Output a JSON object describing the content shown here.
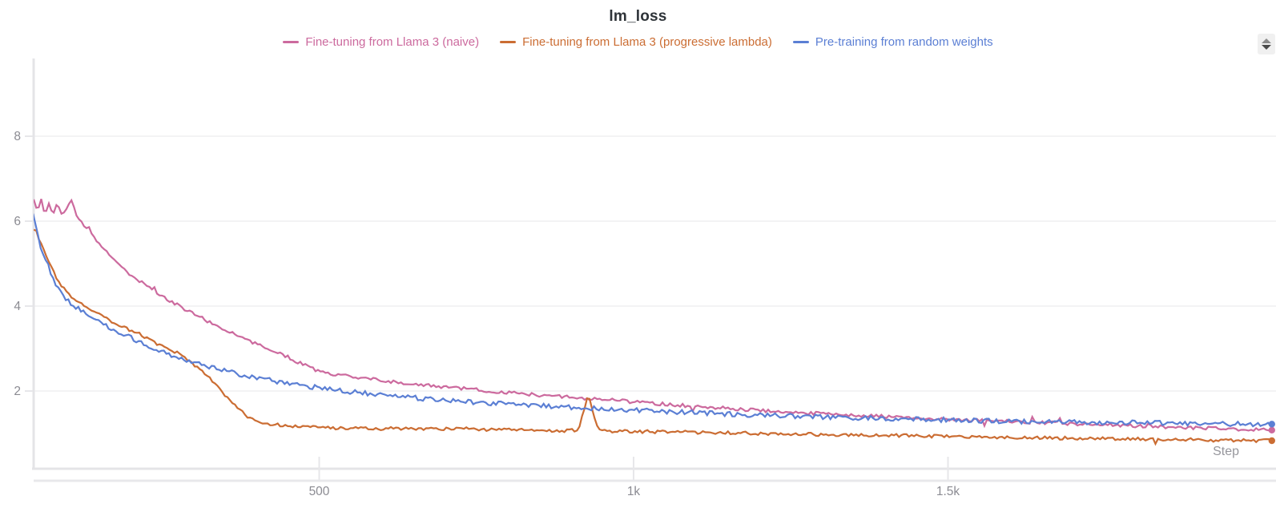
{
  "header": {
    "title": "lm_loss"
  },
  "colors": {
    "axis_line": "#e4e4e7",
    "axis_line_2": "#e8e8eb",
    "grid_line": "#f3f3f4",
    "tick_mark": "#e7e7ea",
    "tick_label": "#8b8b92",
    "title_text": "#2e3338",
    "step_label": "#96969c",
    "background": "#ffffff"
  },
  "chart_data": {
    "type": "line",
    "title": "lm_loss",
    "xlabel": "Step",
    "ylabel": "",
    "grid": true,
    "legend_position": "top",
    "x_axis": {
      "range": [
        45,
        2015
      ],
      "ticks": [
        {
          "label": "500",
          "value": 500
        },
        {
          "label": "1k",
          "value": 1000
        },
        {
          "label": "1.5k",
          "value": 1500
        }
      ]
    },
    "y_axis": {
      "range": [
        0.2,
        9.8
      ],
      "ticks": [
        {
          "label": "8",
          "value": 8
        },
        {
          "label": "6",
          "value": 6
        },
        {
          "label": "4",
          "value": 4
        },
        {
          "label": "2",
          "value": 2
        }
      ]
    },
    "series": [
      {
        "name": "Fine-tuning from Llama 3 (naive)",
        "color": "#cc6a9e",
        "noise": 0.04,
        "end_dot": true,
        "points": [
          [
            46,
            6.55
          ],
          [
            52,
            6.2
          ],
          [
            58,
            6.5
          ],
          [
            64,
            6.15
          ],
          [
            70,
            6.4
          ],
          [
            77,
            6.2
          ],
          [
            84,
            6.45
          ],
          [
            91,
            6.15
          ],
          [
            99,
            6.35
          ],
          [
            107,
            6.5
          ],
          [
            115,
            6.1
          ],
          [
            124,
            5.95
          ],
          [
            134,
            5.75
          ],
          [
            145,
            5.55
          ],
          [
            157,
            5.35
          ],
          [
            170,
            5.15
          ],
          [
            184,
            4.95
          ],
          [
            199,
            4.75
          ],
          [
            214,
            4.6
          ],
          [
            230,
            4.45
          ],
          [
            247,
            4.28
          ],
          [
            265,
            4.1
          ],
          [
            284,
            3.95
          ],
          [
            304,
            3.8
          ],
          [
            325,
            3.62
          ],
          [
            347,
            3.45
          ],
          [
            370,
            3.3
          ],
          [
            394,
            3.15
          ],
          [
            419,
            3.0
          ],
          [
            445,
            2.84
          ],
          [
            472,
            2.64
          ],
          [
            500,
            2.45
          ],
          [
            560,
            2.32
          ],
          [
            620,
            2.21
          ],
          [
            680,
            2.12
          ],
          [
            740,
            2.04
          ],
          [
            800,
            1.96
          ],
          [
            860,
            1.89
          ],
          [
            920,
            1.83
          ],
          [
            980,
            1.77
          ],
          [
            1040,
            1.7
          ],
          [
            1100,
            1.64
          ],
          [
            1160,
            1.58
          ],
          [
            1220,
            1.53
          ],
          [
            1280,
            1.48
          ],
          [
            1340,
            1.44
          ],
          [
            1400,
            1.4
          ],
          [
            1460,
            1.36
          ],
          [
            1520,
            1.32
          ],
          [
            1580,
            1.29
          ],
          [
            1640,
            1.26
          ],
          [
            1700,
            1.23
          ],
          [
            1760,
            1.2
          ],
          [
            1820,
            1.17
          ],
          [
            1880,
            1.14
          ],
          [
            1940,
            1.11
          ],
          [
            2015,
            1.08
          ]
        ]
      },
      {
        "name": "Fine-tuning from Llama 3 (progressive lambda)",
        "color": "#cb6d33",
        "noise": 0.038,
        "end_dot": true,
        "points": [
          [
            46,
            5.9
          ],
          [
            53,
            5.62
          ],
          [
            60,
            5.38
          ],
          [
            68,
            5.12
          ],
          [
            76,
            4.85
          ],
          [
            85,
            4.6
          ],
          [
            95,
            4.4
          ],
          [
            106,
            4.22
          ],
          [
            118,
            4.08
          ],
          [
            131,
            3.95
          ],
          [
            145,
            3.83
          ],
          [
            160,
            3.72
          ],
          [
            176,
            3.6
          ],
          [
            193,
            3.48
          ],
          [
            211,
            3.36
          ],
          [
            230,
            3.22
          ],
          [
            250,
            3.08
          ],
          [
            270,
            2.93
          ],
          [
            290,
            2.75
          ],
          [
            310,
            2.52
          ],
          [
            328,
            2.28
          ],
          [
            344,
            2.02
          ],
          [
            358,
            1.78
          ],
          [
            372,
            1.56
          ],
          [
            386,
            1.4
          ],
          [
            400,
            1.3
          ],
          [
            416,
            1.24
          ],
          [
            434,
            1.2
          ],
          [
            455,
            1.17
          ],
          [
            480,
            1.15
          ],
          [
            510,
            1.13
          ],
          [
            545,
            1.12
          ],
          [
            585,
            1.11
          ],
          [
            630,
            1.12
          ],
          [
            680,
            1.1
          ],
          [
            730,
            1.11
          ],
          [
            780,
            1.09
          ],
          [
            830,
            1.08
          ],
          [
            880,
            1.07
          ],
          [
            912,
            1.07
          ],
          [
            928,
            1.9
          ],
          [
            944,
            1.07
          ],
          [
            990,
            1.05
          ],
          [
            1040,
            1.04
          ],
          [
            1090,
            1.03
          ],
          [
            1140,
            1.02
          ],
          [
            1190,
            1.0
          ],
          [
            1240,
            0.99
          ],
          [
            1290,
            0.98
          ],
          [
            1340,
            0.97
          ],
          [
            1390,
            0.96
          ],
          [
            1440,
            0.95
          ],
          [
            1490,
            0.93
          ],
          [
            1540,
            0.92
          ],
          [
            1590,
            0.91
          ],
          [
            1640,
            0.9
          ],
          [
            1690,
            0.89
          ],
          [
            1740,
            0.88
          ],
          [
            1790,
            0.87
          ],
          [
            1840,
            0.86
          ],
          [
            1890,
            0.85
          ],
          [
            1940,
            0.84
          ],
          [
            2015,
            0.83
          ]
        ]
      },
      {
        "name": "Pre-training from random weights",
        "color": "#5b7fd4",
        "noise": 0.055,
        "end_dot": true,
        "points": [
          [
            45,
            6.2
          ],
          [
            50,
            5.8
          ],
          [
            55,
            5.5
          ],
          [
            60,
            5.28
          ],
          [
            67,
            5.05
          ],
          [
            74,
            4.72
          ],
          [
            82,
            4.5
          ],
          [
            93,
            4.25
          ],
          [
            105,
            4.05
          ],
          [
            118,
            3.92
          ],
          [
            132,
            3.78
          ],
          [
            148,
            3.63
          ],
          [
            165,
            3.5
          ],
          [
            183,
            3.37
          ],
          [
            202,
            3.24
          ],
          [
            222,
            3.1
          ],
          [
            243,
            2.97
          ],
          [
            265,
            2.85
          ],
          [
            288,
            2.73
          ],
          [
            312,
            2.62
          ],
          [
            337,
            2.52
          ],
          [
            363,
            2.43
          ],
          [
            390,
            2.34
          ],
          [
            418,
            2.26
          ],
          [
            447,
            2.19
          ],
          [
            477,
            2.12
          ],
          [
            508,
            2.06
          ],
          [
            540,
            2.0
          ],
          [
            573,
            1.95
          ],
          [
            607,
            1.9
          ],
          [
            642,
            1.85
          ],
          [
            678,
            1.81
          ],
          [
            715,
            1.77
          ],
          [
            753,
            1.73
          ],
          [
            792,
            1.7
          ],
          [
            832,
            1.67
          ],
          [
            873,
            1.64
          ],
          [
            915,
            1.61
          ],
          [
            958,
            1.58
          ],
          [
            1002,
            1.55
          ],
          [
            1050,
            1.52
          ],
          [
            1100,
            1.49
          ],
          [
            1150,
            1.46
          ],
          [
            1200,
            1.43
          ],
          [
            1250,
            1.41
          ],
          [
            1300,
            1.39
          ],
          [
            1350,
            1.37
          ],
          [
            1400,
            1.35
          ],
          [
            1460,
            1.33
          ],
          [
            1520,
            1.31
          ],
          [
            1580,
            1.29
          ],
          [
            1640,
            1.28
          ],
          [
            1700,
            1.27
          ],
          [
            1760,
            1.26
          ],
          [
            1820,
            1.25
          ],
          [
            1880,
            1.24
          ],
          [
            1940,
            1.23
          ],
          [
            2015,
            1.22
          ]
        ]
      }
    ]
  }
}
